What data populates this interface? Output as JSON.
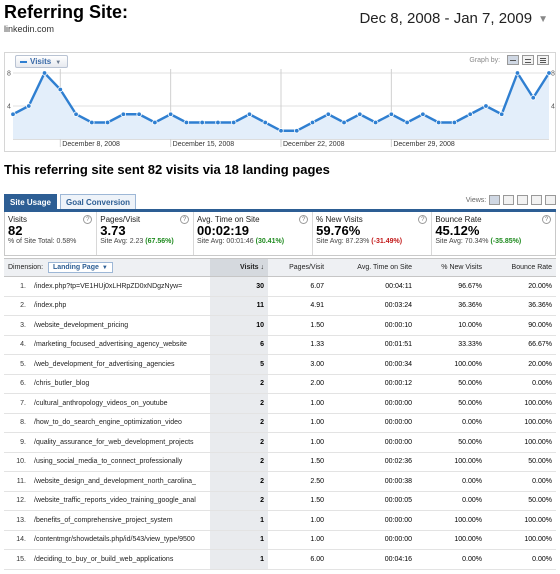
{
  "header": {
    "title": "Referring Site:",
    "subtitle": "linkedin.com",
    "date_range": "Dec 8, 2008 - Jan 7, 2009"
  },
  "graph": {
    "metric_selector": "Visits",
    "graph_by_label": "Graph by:"
  },
  "chart_data": {
    "type": "line",
    "series": [
      {
        "name": "Visits",
        "color": "#2f7fd1",
        "values": [
          3,
          4,
          8,
          6,
          3,
          2,
          2,
          3,
          3,
          2,
          3,
          2,
          2,
          2,
          2,
          3,
          2,
          1,
          1,
          2,
          3,
          2,
          3,
          2,
          3,
          2,
          3,
          2,
          2,
          3,
          4,
          3,
          8,
          5,
          8
        ]
      }
    ],
    "x_start": "2008-12-05",
    "y_ticks": [
      4,
      8
    ],
    "ylim": [
      0,
      8
    ],
    "x_tick_labels": [
      "December 8, 2008",
      "December 15, 2008",
      "December 22, 2008",
      "December 29, 2008"
    ],
    "grid": true
  },
  "summary_text": "This referring site sent 82 visits via 18 landing pages",
  "tabs": [
    {
      "label": "Site Usage",
      "active": true
    },
    {
      "label": "Goal Conversion",
      "active": false
    }
  ],
  "views_label": "Views:",
  "metrics": [
    {
      "label": "Visits",
      "value": "82",
      "sub_prefix": "% of Site Total: ",
      "sub_value": "0.58%",
      "sub_class": ""
    },
    {
      "label": "Pages/Visit",
      "value": "3.73",
      "sub_prefix": "Site Avg: 2.23 ",
      "sub_value": "(67.56%)",
      "sub_class": "pos"
    },
    {
      "label": "Avg. Time on Site",
      "value": "00:02:19",
      "sub_prefix": "Site Avg: 00:01:46 ",
      "sub_value": "(30.41%)",
      "sub_class": "pos"
    },
    {
      "label": "% New Visits",
      "value": "59.76%",
      "sub_prefix": "Site Avg: 87.23% ",
      "sub_value": "(-31.49%)",
      "sub_class": "neg"
    },
    {
      "label": "Bounce Rate",
      "value": "45.12%",
      "sub_prefix": "Site Avg: 70.34% ",
      "sub_value": "(-35.85%)",
      "sub_class": "pos"
    }
  ],
  "table": {
    "dimension_label": "Dimension:",
    "dimension_value": "Landing Page",
    "columns": [
      "Visits ↓",
      "Pages/Visit",
      "Avg. Time on Site",
      "% New Visits",
      "Bounce Rate"
    ],
    "rows": [
      {
        "n": "1.",
        "page": "/index.php?tp=VE1HUj0xLHRpZD0xNDgzNyw=",
        "visits": "30",
        "ppv": "6.07",
        "time": "00:04:11",
        "newv": "96.67%",
        "bounce": "20.00%"
      },
      {
        "n": "2.",
        "page": "/index.php",
        "visits": "11",
        "ppv": "4.91",
        "time": "00:03:24",
        "newv": "36.36%",
        "bounce": "36.36%"
      },
      {
        "n": "3.",
        "page": "/website_development_pricing",
        "visits": "10",
        "ppv": "1.50",
        "time": "00:00:10",
        "newv": "10.00%",
        "bounce": "90.00%"
      },
      {
        "n": "4.",
        "page": "/marketing_focused_advertising_agency_website",
        "visits": "6",
        "ppv": "1.33",
        "time": "00:01:51",
        "newv": "33.33%",
        "bounce": "66.67%"
      },
      {
        "n": "5.",
        "page": "/web_development_for_advertising_agencies",
        "visits": "5",
        "ppv": "3.00",
        "time": "00:00:34",
        "newv": "100.00%",
        "bounce": "20.00%"
      },
      {
        "n": "6.",
        "page": "/chris_butler_blog",
        "visits": "2",
        "ppv": "2.00",
        "time": "00:00:12",
        "newv": "50.00%",
        "bounce": "0.00%"
      },
      {
        "n": "7.",
        "page": "/cultural_anthropology_videos_on_youtube",
        "visits": "2",
        "ppv": "1.00",
        "time": "00:00:00",
        "newv": "50.00%",
        "bounce": "100.00%"
      },
      {
        "n": "8.",
        "page": "/how_to_do_search_engine_optimization_video",
        "visits": "2",
        "ppv": "1.00",
        "time": "00:00:00",
        "newv": "0.00%",
        "bounce": "100.00%"
      },
      {
        "n": "9.",
        "page": "/quality_assurance_for_web_development_projects",
        "visits": "2",
        "ppv": "1.00",
        "time": "00:00:00",
        "newv": "50.00%",
        "bounce": "100.00%"
      },
      {
        "n": "10.",
        "page": "/using_social_media_to_connect_professionally",
        "visits": "2",
        "ppv": "1.50",
        "time": "00:02:36",
        "newv": "100.00%",
        "bounce": "50.00%"
      },
      {
        "n": "11.",
        "page": "/website_design_and_development_north_carolina_",
        "visits": "2",
        "ppv": "2.50",
        "time": "00:00:38",
        "newv": "0.00%",
        "bounce": "0.00%"
      },
      {
        "n": "12.",
        "page": "/website_traffic_reports_video_training_google_anal",
        "visits": "2",
        "ppv": "1.50",
        "time": "00:00:05",
        "newv": "0.00%",
        "bounce": "50.00%"
      },
      {
        "n": "13.",
        "page": "/benefits_of_comprehensive_project_system",
        "visits": "1",
        "ppv": "1.00",
        "time": "00:00:00",
        "newv": "100.00%",
        "bounce": "100.00%"
      },
      {
        "n": "14.",
        "page": "/contentmgr/showdetails.php/id/543/view_type/9500",
        "visits": "1",
        "ppv": "1.00",
        "time": "00:00:00",
        "newv": "100.00%",
        "bounce": "100.00%"
      },
      {
        "n": "15.",
        "page": "/deciding_to_buy_or_build_web_applications",
        "visits": "1",
        "ppv": "6.00",
        "time": "00:04:16",
        "newv": "0.00%",
        "bounce": "0.00%"
      }
    ]
  }
}
